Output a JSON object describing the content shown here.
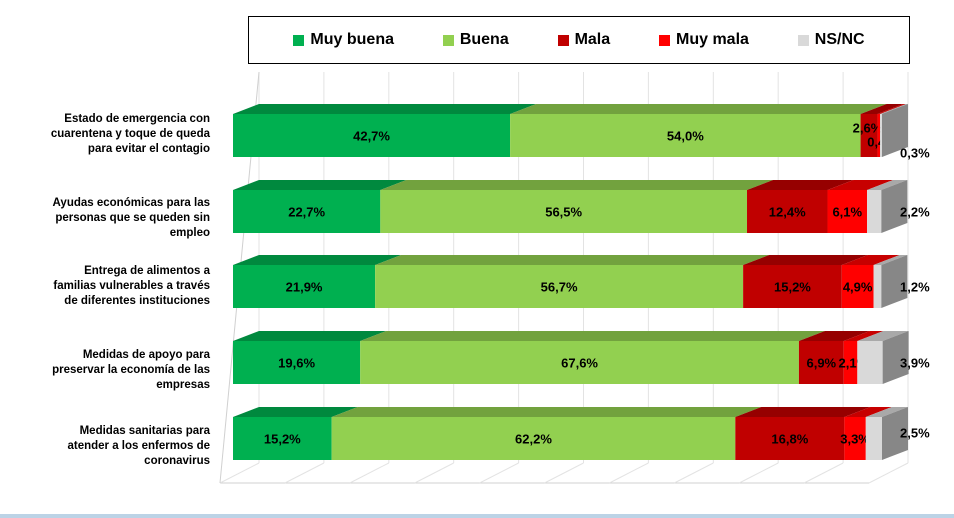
{
  "legend": {
    "items": [
      {
        "label": "Muy buena",
        "color": "#00b050"
      },
      {
        "label": "Buena",
        "color": "#92d050"
      },
      {
        "label": "Mala",
        "color": "#c00000"
      },
      {
        "label": "Muy mala",
        "color": "#ff0000"
      },
      {
        "label": "NS/NC",
        "color": "#d9d9d9"
      }
    ]
  },
  "categories": [
    {
      "label": "Estado de emergencia con cuarentena y toque de queda para evitar el contagio"
    },
    {
      "label": "Ayudas económicas para las personas que se queden sin empleo"
    },
    {
      "label": "Entrega de alimentos a familias vulnerables a través de diferentes instituciones"
    },
    {
      "label": "Medidas de apoyo para preservar la economía de las empresas"
    },
    {
      "label": "Medidas sanitarias para atender a los enfermos de coronavirus"
    }
  ],
  "chart_data": {
    "type": "bar",
    "orientation": "horizontal",
    "stacked": "100%",
    "categories": [
      "Estado de emergencia con cuarentena y toque de queda para evitar el contagio",
      "Ayudas económicas para las personas que se queden sin empleo",
      "Entrega de alimentos a familias vulnerables a través de diferentes instituciones",
      "Medidas de apoyo para preservar la economía de las empresas",
      "Medidas sanitarias para atender a los enfermos de coronavirus"
    ],
    "series": [
      {
        "name": "Muy buena",
        "color": "#00b050",
        "values": [
          42.7,
          22.7,
          21.9,
          19.6,
          15.2
        ],
        "labels": [
          "42,7%",
          "22,7%",
          "21,9%",
          "19,6%",
          "15,2%"
        ]
      },
      {
        "name": "Buena",
        "color": "#92d050",
        "values": [
          54.0,
          56.5,
          56.7,
          67.6,
          62.2
        ],
        "labels": [
          "54,0%",
          "56,5%",
          "56,7%",
          "67,6%",
          "62,2%"
        ]
      },
      {
        "name": "Mala",
        "color": "#c00000",
        "values": [
          2.6,
          12.4,
          15.2,
          6.9,
          16.8
        ],
        "labels": [
          "2,6%",
          "12,4%",
          "15,2%",
          "6,9%",
          "16,8%"
        ]
      },
      {
        "name": "Muy mala",
        "color": "#ff0000",
        "values": [
          0.4,
          6.1,
          4.9,
          2.1,
          3.3
        ],
        "labels": [
          "0,4%",
          "6,1%",
          "4,9%",
          "2,1%",
          "3,3%"
        ]
      },
      {
        "name": "NS/NC",
        "color": "#d9d9d9",
        "values": [
          0.3,
          2.2,
          1.2,
          3.9,
          2.5
        ],
        "labels": [
          "0,3%",
          "2,2%",
          "1,2%",
          "3,9%",
          "2,5%"
        ]
      }
    ],
    "xlim": [
      0,
      100
    ],
    "grid": true,
    "legend_position": "top"
  }
}
